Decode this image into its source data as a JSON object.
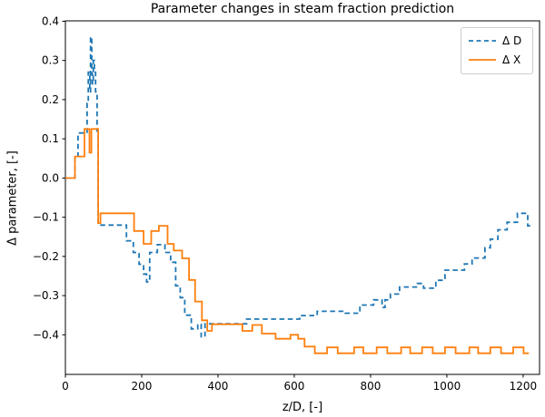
{
  "chart_data": {
    "type": "line",
    "title": "Parameter changes in steam fraction prediction",
    "xlabel": "z/D, [-]",
    "ylabel": "Δ parameter, [-]",
    "xlim": [
      0,
      1243
    ],
    "ylim": [
      -0.501,
      0.401
    ],
    "grid": false,
    "legend_position": "upper right",
    "drawstyle": "steps-post",
    "x_ticks": [
      {
        "v": 0,
        "label": "0"
      },
      {
        "v": 200,
        "label": "200"
      },
      {
        "v": 400,
        "label": "400"
      },
      {
        "v": 600,
        "label": "600"
      },
      {
        "v": 800,
        "label": "800"
      },
      {
        "v": 1000,
        "label": "1000"
      },
      {
        "v": 1200,
        "label": "1200"
      }
    ],
    "y_ticks": [
      {
        "v": 0.4,
        "label": "0.4"
      },
      {
        "v": 0.3,
        "label": "0.3"
      },
      {
        "v": 0.2,
        "label": "0.2"
      },
      {
        "v": 0.1,
        "label": "0.1"
      },
      {
        "v": 0.0,
        "label": "0.0"
      },
      {
        "v": -0.1,
        "label": "−0.1"
      },
      {
        "v": -0.2,
        "label": "−0.2"
      },
      {
        "v": -0.3,
        "label": "−0.3"
      },
      {
        "v": -0.4,
        "label": "−0.4"
      }
    ],
    "series": [
      {
        "name": "Δ D",
        "color": "#1f77b4",
        "style": "dashed",
        "points": [
          [
            0,
            0
          ],
          [
            25,
            0.055
          ],
          [
            33,
            0.115
          ],
          [
            57,
            0.19
          ],
          [
            60,
            0.27
          ],
          [
            64,
            0.22
          ],
          [
            66,
            0.36
          ],
          [
            69,
            0.265
          ],
          [
            71,
            0.24
          ],
          [
            73,
            0.3
          ],
          [
            76,
            0.27
          ],
          [
            79,
            0.22
          ],
          [
            83,
            0.12
          ],
          [
            86,
            -0.12
          ],
          [
            160,
            -0.16
          ],
          [
            178,
            -0.19
          ],
          [
            193,
            -0.22
          ],
          [
            205,
            -0.245
          ],
          [
            213,
            -0.265
          ],
          [
            221,
            -0.19
          ],
          [
            241,
            -0.17
          ],
          [
            261,
            -0.19
          ],
          [
            276,
            -0.215
          ],
          [
            289,
            -0.275
          ],
          [
            301,
            -0.305
          ],
          [
            313,
            -0.35
          ],
          [
            330,
            -0.385
          ],
          [
            347,
            -0.373
          ],
          [
            356,
            -0.405
          ],
          [
            366,
            -0.372
          ],
          [
            475,
            -0.36
          ],
          [
            614,
            -0.351
          ],
          [
            660,
            -0.34
          ],
          [
            733,
            -0.345
          ],
          [
            772,
            -0.324
          ],
          [
            808,
            -0.311
          ],
          [
            830,
            -0.33
          ],
          [
            838,
            -0.311
          ],
          [
            852,
            -0.296
          ],
          [
            876,
            -0.278
          ],
          [
            923,
            -0.269
          ],
          [
            939,
            -0.281
          ],
          [
            971,
            -0.261
          ],
          [
            995,
            -0.235
          ],
          [
            1046,
            -0.219
          ],
          [
            1066,
            -0.204
          ],
          [
            1100,
            -0.178
          ],
          [
            1114,
            -0.156
          ],
          [
            1134,
            -0.132
          ],
          [
            1158,
            -0.113
          ],
          [
            1185,
            -0.09
          ],
          [
            1212,
            -0.122
          ],
          [
            1222,
            -0.122
          ]
        ]
      },
      {
        "name": "Δ X",
        "color": "#ff7f0e",
        "style": "solid",
        "points": [
          [
            0,
            0
          ],
          [
            25,
            0.055
          ],
          [
            50,
            0.125
          ],
          [
            63,
            0.065
          ],
          [
            68,
            0.125
          ],
          [
            86,
            -0.115
          ],
          [
            92,
            -0.09
          ],
          [
            180,
            -0.135
          ],
          [
            205,
            -0.168
          ],
          [
            225,
            -0.135
          ],
          [
            245,
            -0.122
          ],
          [
            268,
            -0.168
          ],
          [
            284,
            -0.185
          ],
          [
            306,
            -0.205
          ],
          [
            324,
            -0.26
          ],
          [
            340,
            -0.315
          ],
          [
            358,
            -0.363
          ],
          [
            372,
            -0.39
          ],
          [
            384,
            -0.373
          ],
          [
            464,
            -0.39
          ],
          [
            490,
            -0.375
          ],
          [
            515,
            -0.397
          ],
          [
            551,
            -0.41
          ],
          [
            590,
            -0.4
          ],
          [
            610,
            -0.41
          ],
          [
            627,
            -0.43
          ],
          [
            654,
            -0.447
          ],
          [
            686,
            -0.432
          ],
          [
            714,
            -0.447
          ],
          [
            757,
            -0.432
          ],
          [
            781,
            -0.447
          ],
          [
            816,
            -0.432
          ],
          [
            844,
            -0.447
          ],
          [
            880,
            -0.432
          ],
          [
            904,
            -0.447
          ],
          [
            935,
            -0.432
          ],
          [
            963,
            -0.447
          ],
          [
            995,
            -0.432
          ],
          [
            1023,
            -0.447
          ],
          [
            1059,
            -0.432
          ],
          [
            1082,
            -0.447
          ],
          [
            1114,
            -0.432
          ],
          [
            1142,
            -0.447
          ],
          [
            1174,
            -0.432
          ],
          [
            1201,
            -0.447
          ],
          [
            1215,
            -0.447
          ]
        ]
      }
    ]
  }
}
